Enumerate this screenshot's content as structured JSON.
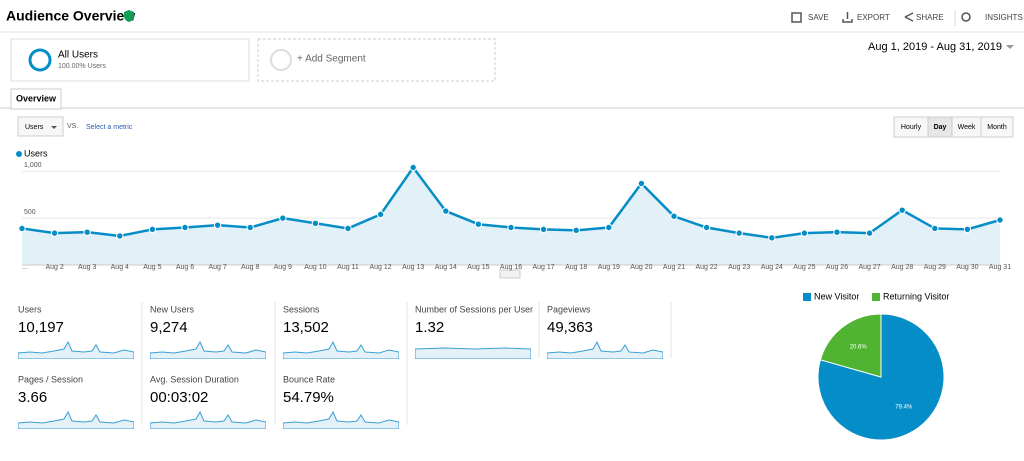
{
  "header": {
    "title": "Audience Overview",
    "actions": [
      "SAVE",
      "EXPORT",
      "SHARE",
      "INSIGHTS"
    ]
  },
  "segments": {
    "active": {
      "name": "All Users",
      "detail": "100.00% Users"
    },
    "add": "+ Add Segment"
  },
  "date_range": "Aug 1, 2019 - Aug 31, 2019",
  "tab": "Overview",
  "controls": {
    "metric": "Users",
    "vs": "VS.",
    "select": "Select a metric",
    "granularity": [
      "Hourly",
      "Day",
      "Week",
      "Month"
    ]
  },
  "chart_data": {
    "type": "line",
    "categories": [
      "...",
      "Aug 2",
      "Aug 3",
      "Aug 4",
      "Aug 5",
      "Aug 6",
      "Aug 7",
      "Aug 8",
      "Aug 9",
      "Aug 10",
      "Aug 11",
      "Aug 12",
      "Aug 13",
      "Aug 14",
      "Aug 15",
      "Aug 16",
      "Aug 17",
      "Aug 18",
      "Aug 19",
      "Aug 20",
      "Aug 21",
      "Aug 22",
      "Aug 23",
      "Aug 24",
      "Aug 25",
      "Aug 26",
      "Aug 27",
      "Aug 28",
      "Aug 29",
      "Aug 30",
      "Aug 31"
    ],
    "series": [
      {
        "name": "Users",
        "color": "#058dc7",
        "values": [
          390,
          340,
          350,
          310,
          380,
          400,
          425,
          400,
          500,
          445,
          390,
          540,
          1040,
          575,
          435,
          400,
          380,
          370,
          400,
          870,
          520,
          400,
          340,
          290,
          340,
          350,
          340,
          585,
          390,
          380,
          480
        ]
      }
    ],
    "ylim": [
      0,
      1120
    ],
    "yticks": [
      500,
      {
        "value": 1000,
        "label": "1,000"
      }
    ],
    "grid": true
  },
  "metrics": [
    {
      "label": "Users",
      "value": "10,197"
    },
    {
      "label": "New Users",
      "value": "9,274"
    },
    {
      "label": "Sessions",
      "value": "13,502"
    },
    {
      "label": "Number of Sessions per User",
      "value": "1.32"
    },
    {
      "label": "Pageviews",
      "value": "49,363"
    },
    {
      "label": "Pages / Session",
      "value": "3.66"
    },
    {
      "label": "Avg. Session Duration",
      "value": "00:03:02"
    },
    {
      "label": "Bounce Rate",
      "value": "54.79%"
    }
  ],
  "pie_data": {
    "type": "pie",
    "categories": [
      "New Visitor",
      "Returning Visitor"
    ],
    "values": [
      79.4,
      20.6
    ],
    "value_labels": [
      "79.4%",
      "20.6%"
    ],
    "colors": [
      "#058dc7",
      "#50b432"
    ],
    "legend": "top"
  }
}
